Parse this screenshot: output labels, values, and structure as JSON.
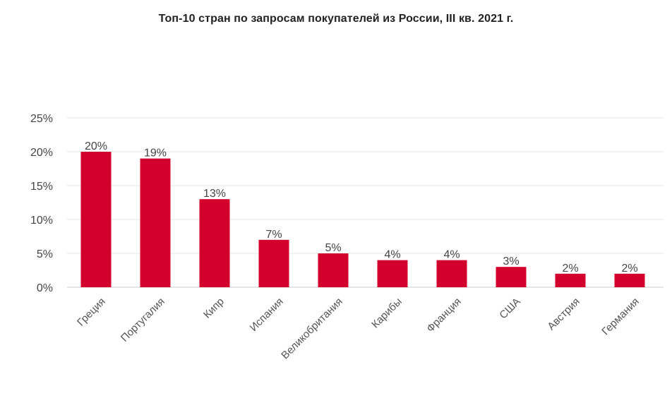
{
  "chart_data": {
    "type": "bar",
    "title": "Топ-10 стран по запросам покупателей из России, III кв. 2021 г.",
    "xlabel": "",
    "ylabel": "",
    "categories": [
      "Греция",
      "Португалия",
      "Кипр",
      "Испания",
      "Великобритания",
      "Карибы",
      "Франция",
      "США",
      "Австрия",
      "Германия"
    ],
    "values": [
      20,
      19,
      13,
      7,
      5,
      4,
      4,
      3,
      2,
      2
    ],
    "data_labels": [
      "20%",
      "19%",
      "13%",
      "7%",
      "5%",
      "4%",
      "4%",
      "3%",
      "2%",
      "2%"
    ],
    "y_ticks": [
      0,
      5,
      10,
      15,
      20,
      25
    ],
    "y_tick_labels": [
      "0%",
      "5%",
      "10%",
      "15%",
      "20%",
      "25%"
    ],
    "ylim": [
      0,
      25
    ],
    "grid": true,
    "legend": "none",
    "colors": {
      "bar": "#d3002d",
      "grid": "#e6e6e6",
      "axis": "#cccccc"
    }
  }
}
